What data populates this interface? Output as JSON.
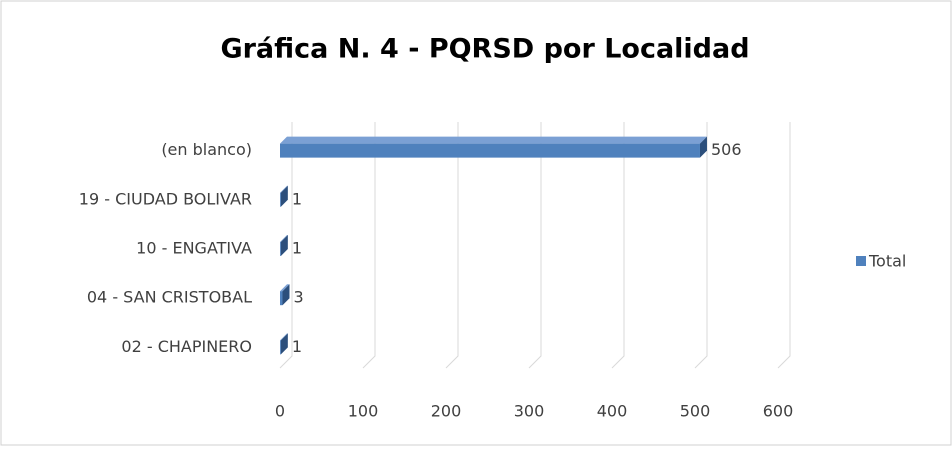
{
  "chart_data": {
    "type": "bar",
    "orientation": "horizontal",
    "title": "Gráfica N. 4 - PQRSD por Localidad",
    "categories": [
      "(en blanco)",
      "19 - CIUDAD BOLIVAR",
      "10 - ENGATIVA",
      "04 - SAN CRISTOBAL",
      "02 - CHAPINERO"
    ],
    "series": [
      {
        "name": "Total",
        "color": "#4f81bd",
        "values": [
          506,
          1,
          1,
          3,
          1
        ]
      }
    ],
    "xlim": [
      0,
      600
    ],
    "xticks": [
      0,
      100,
      200,
      300,
      400,
      500,
      600
    ],
    "grid": true,
    "legend": "right"
  }
}
